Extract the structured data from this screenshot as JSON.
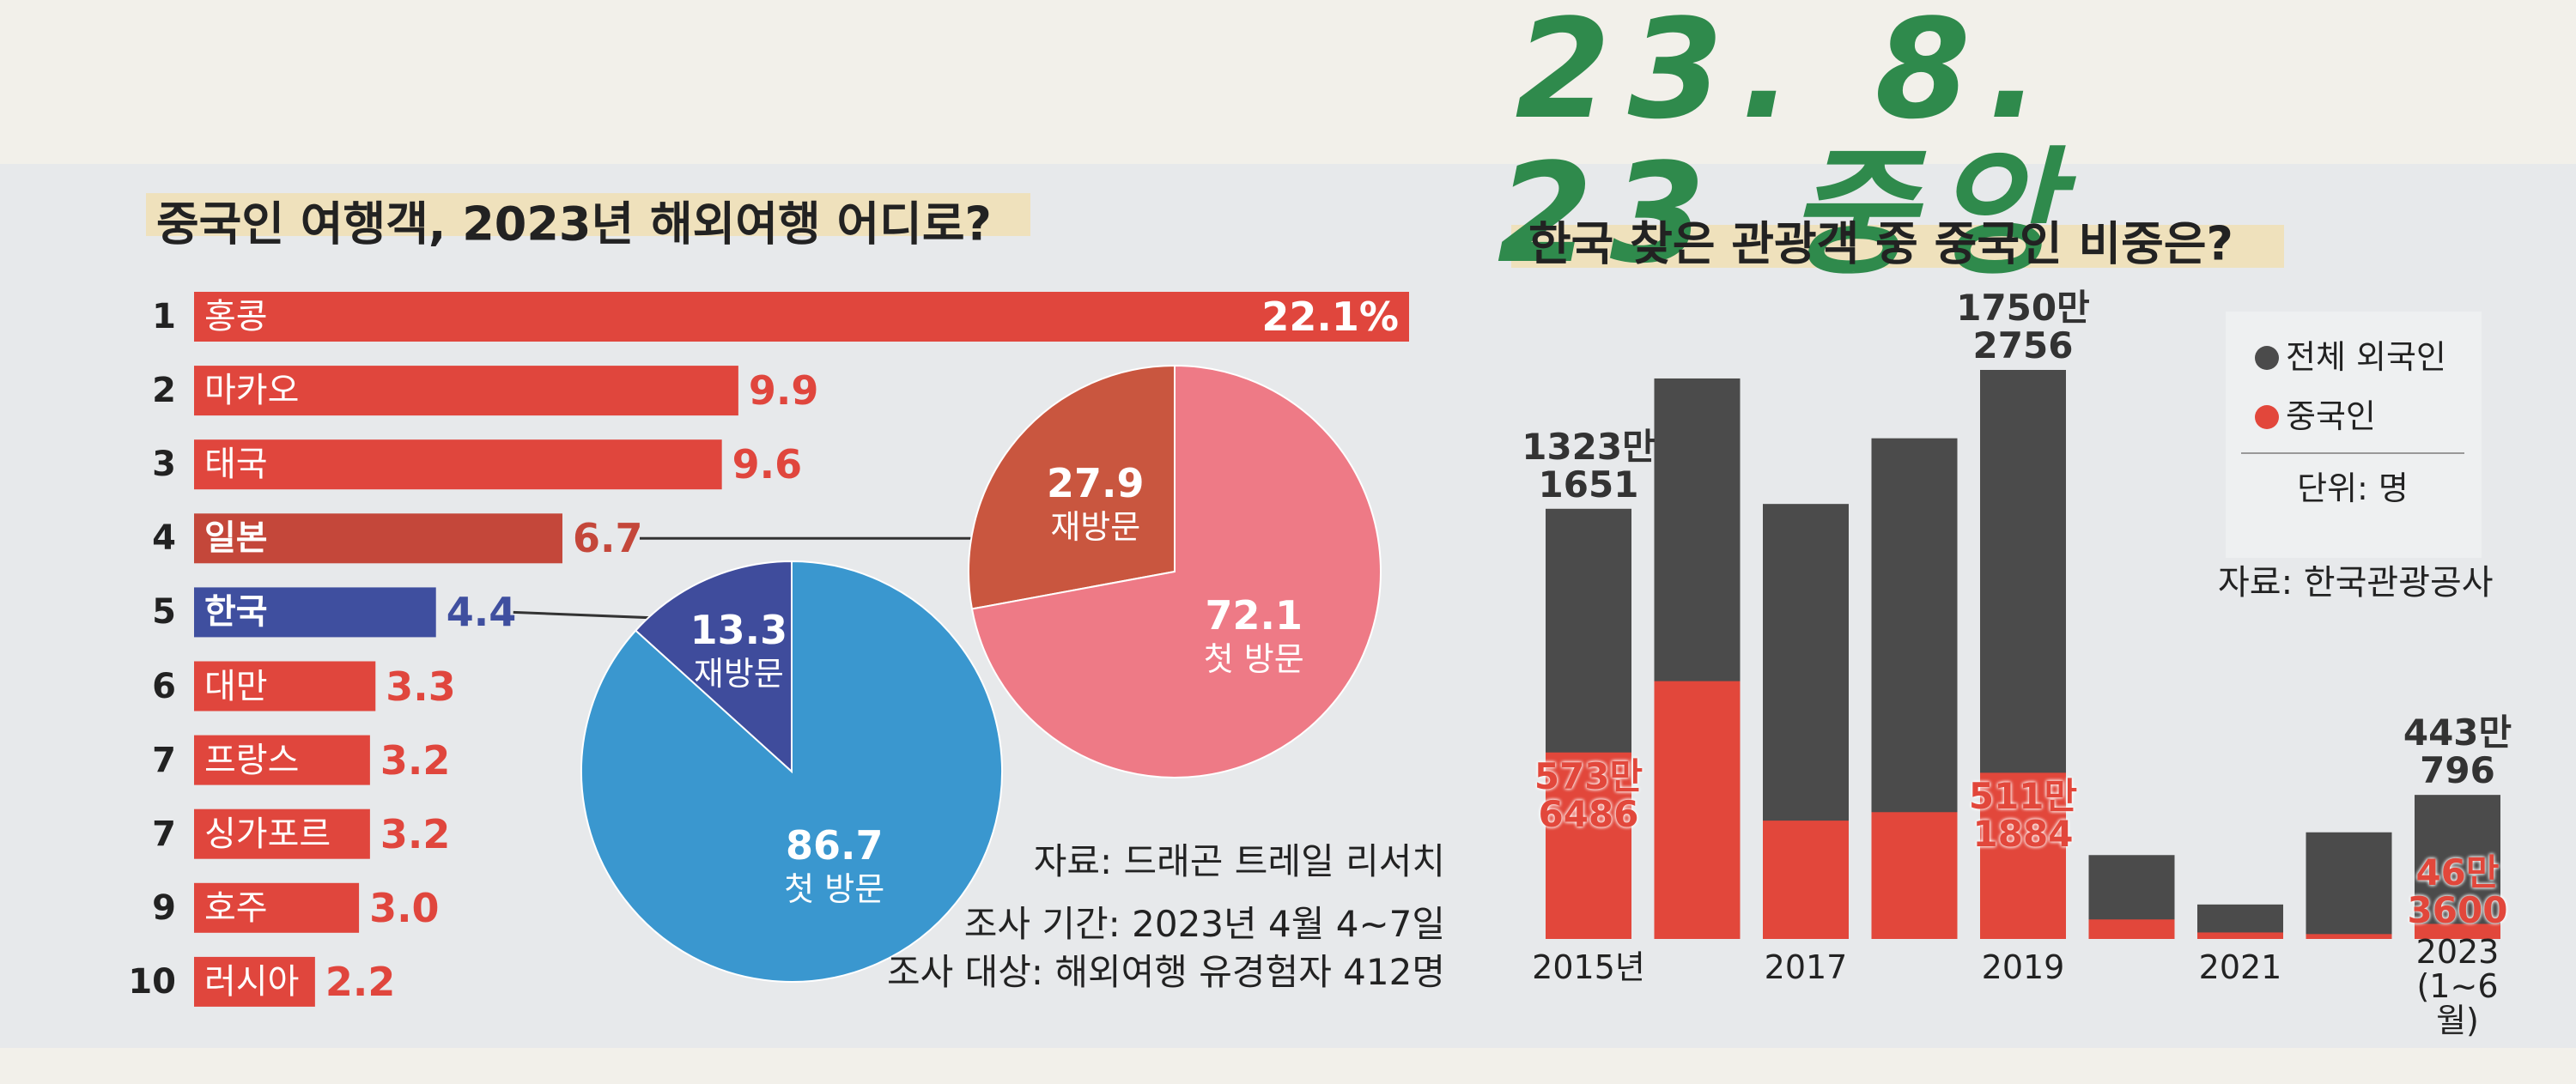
{
  "handwriting": "23. 8. 23 중앙",
  "chart_data": [
    {
      "type": "bar",
      "horizontal": true,
      "title": "중국인 여행객, 2023년 해외여행 어디로?",
      "ranks": [
        "1",
        "2",
        "3",
        "4",
        "5",
        "6",
        "7",
        "7",
        "9",
        "10"
      ],
      "categories": [
        "홍콩",
        "마카오",
        "태국",
        "일본",
        "한국",
        "대만",
        "프랑스",
        "싱가포르",
        "호주",
        "러시아"
      ],
      "values": [
        22.1,
        9.9,
        9.6,
        6.7,
        4.4,
        3.3,
        3.2,
        3.2,
        3.0,
        2.2
      ],
      "value_labels": [
        "22.1%",
        "9.9",
        "9.6",
        "6.7",
        "4.4",
        "3.3",
        "3.2",
        "3.2",
        "3.0",
        "2.2"
      ],
      "colors": [
        "#e0463d",
        "#e0463d",
        "#e0463d",
        "#c4473a",
        "#3f4f9f",
        "#e0463d",
        "#e0463d",
        "#e0463d",
        "#e0463d",
        "#e0463d"
      ],
      "notes": [
        "자료: 드래곤 트레일 리서치",
        "조사 기간: 2023년 4월 4~7일",
        "조사 대상: 해외여행 유경험자 412명"
      ]
    },
    {
      "type": "pie",
      "categories": [
        "재방문",
        "첫 방문"
      ],
      "values": [
        27.9,
        72.1
      ],
      "colors": [
        "#c9563f",
        "#ee7a86"
      ]
    },
    {
      "type": "pie",
      "categories": [
        "재방문",
        "첫 방문"
      ],
      "values": [
        13.3,
        86.7
      ],
      "colors": [
        "#3f4c9c",
        "#3a97cf"
      ]
    },
    {
      "type": "bar",
      "overlap": true,
      "title": "한국 찾은 관광객 중 중국인 비중은?",
      "categories": [
        "2015년",
        null,
        "2017",
        null,
        "2019",
        null,
        "2021",
        null,
        "2023\n(1~6월)"
      ],
      "series": [
        {
          "name": "전체 외국인",
          "color": "#4b4b4b",
          "values": [
            13231651,
            17240000,
            13380000,
            15400000,
            17502756,
            2580000,
            1060000,
            3280000,
            4430796
          ],
          "value_labels": [
            "1323만\n1651",
            null,
            null,
            null,
            "1750만\n2756",
            null,
            null,
            null,
            "443만\n796"
          ]
        },
        {
          "name": "중국인",
          "color": "#e2473b",
          "values": [
            5736486,
            7930000,
            3640000,
            3900000,
            5111884,
            600000,
            200000,
            150000,
            463600
          ],
          "value_labels": [
            "573만\n6486",
            null,
            null,
            null,
            "511만\n1884",
            null,
            null,
            null,
            "46만\n3600"
          ]
        }
      ],
      "unit": "단위: 명",
      "source": "자료: 한국관광공사"
    }
  ]
}
